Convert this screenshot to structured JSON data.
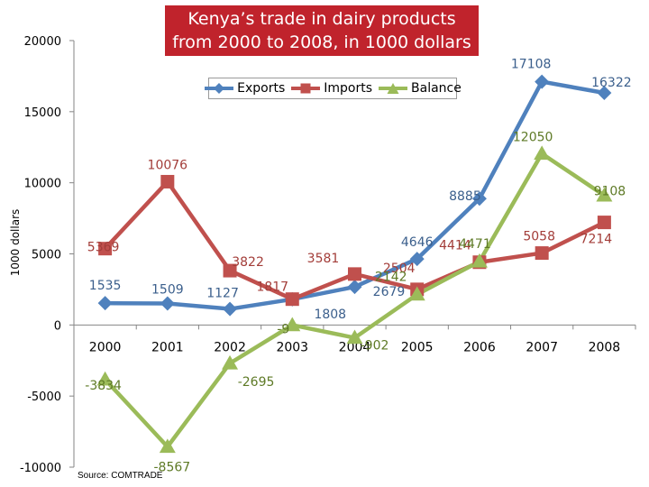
{
  "chart_data": {
    "type": "line",
    "title": "Kenya’s trade in dairy products from 2000 to 2008, in 1000 dollars",
    "title_lines": [
      "Kenya’s trade in dairy products",
      "from 2000 to 2008, in 1000 dollars"
    ],
    "ylabel": "1000 dollars",
    "xlabel": "",
    "categories": [
      "2000",
      "2001",
      "2002",
      "2003",
      "2004",
      "2005",
      "2006",
      "2007",
      "2008"
    ],
    "y_ticks": [
      "20000",
      "15000",
      "10000",
      "5000",
      "0",
      "-5000",
      "-10000"
    ],
    "ylim": [
      -10000,
      20000
    ],
    "legend_position": "top",
    "grid": false,
    "source": "Source: COMTRADE",
    "series": [
      {
        "name": "Exports",
        "color": "#4f81bd",
        "marker": "diamond",
        "values": [
          1535,
          1509,
          1127,
          1808,
          2679,
          4646,
          8885,
          17108,
          16322
        ],
        "labels": [
          "1535",
          "1509",
          "1127",
          "1808",
          "2679",
          "4646",
          "8885",
          "17108",
          "16322"
        ]
      },
      {
        "name": "Imports",
        "color": "#c0504d",
        "marker": "square",
        "values": [
          5369,
          10076,
          3822,
          1817,
          3581,
          2504,
          4414,
          5058,
          7214
        ],
        "labels": [
          "5369",
          "10076",
          "3822",
          "1817",
          "3581",
          "2504",
          "4414",
          "5058",
          "7214"
        ]
      },
      {
        "name": "Balance",
        "color": "#9bbb59",
        "marker": "triangle",
        "values": [
          -3834,
          -8567,
          -2695,
          -9,
          -902,
          2142,
          4471,
          12050,
          9108
        ],
        "labels": [
          "-3834",
          "-8567",
          "-2695",
          "-9",
          "-902",
          "2142",
          "4471",
          "12050",
          "9108"
        ]
      }
    ]
  }
}
